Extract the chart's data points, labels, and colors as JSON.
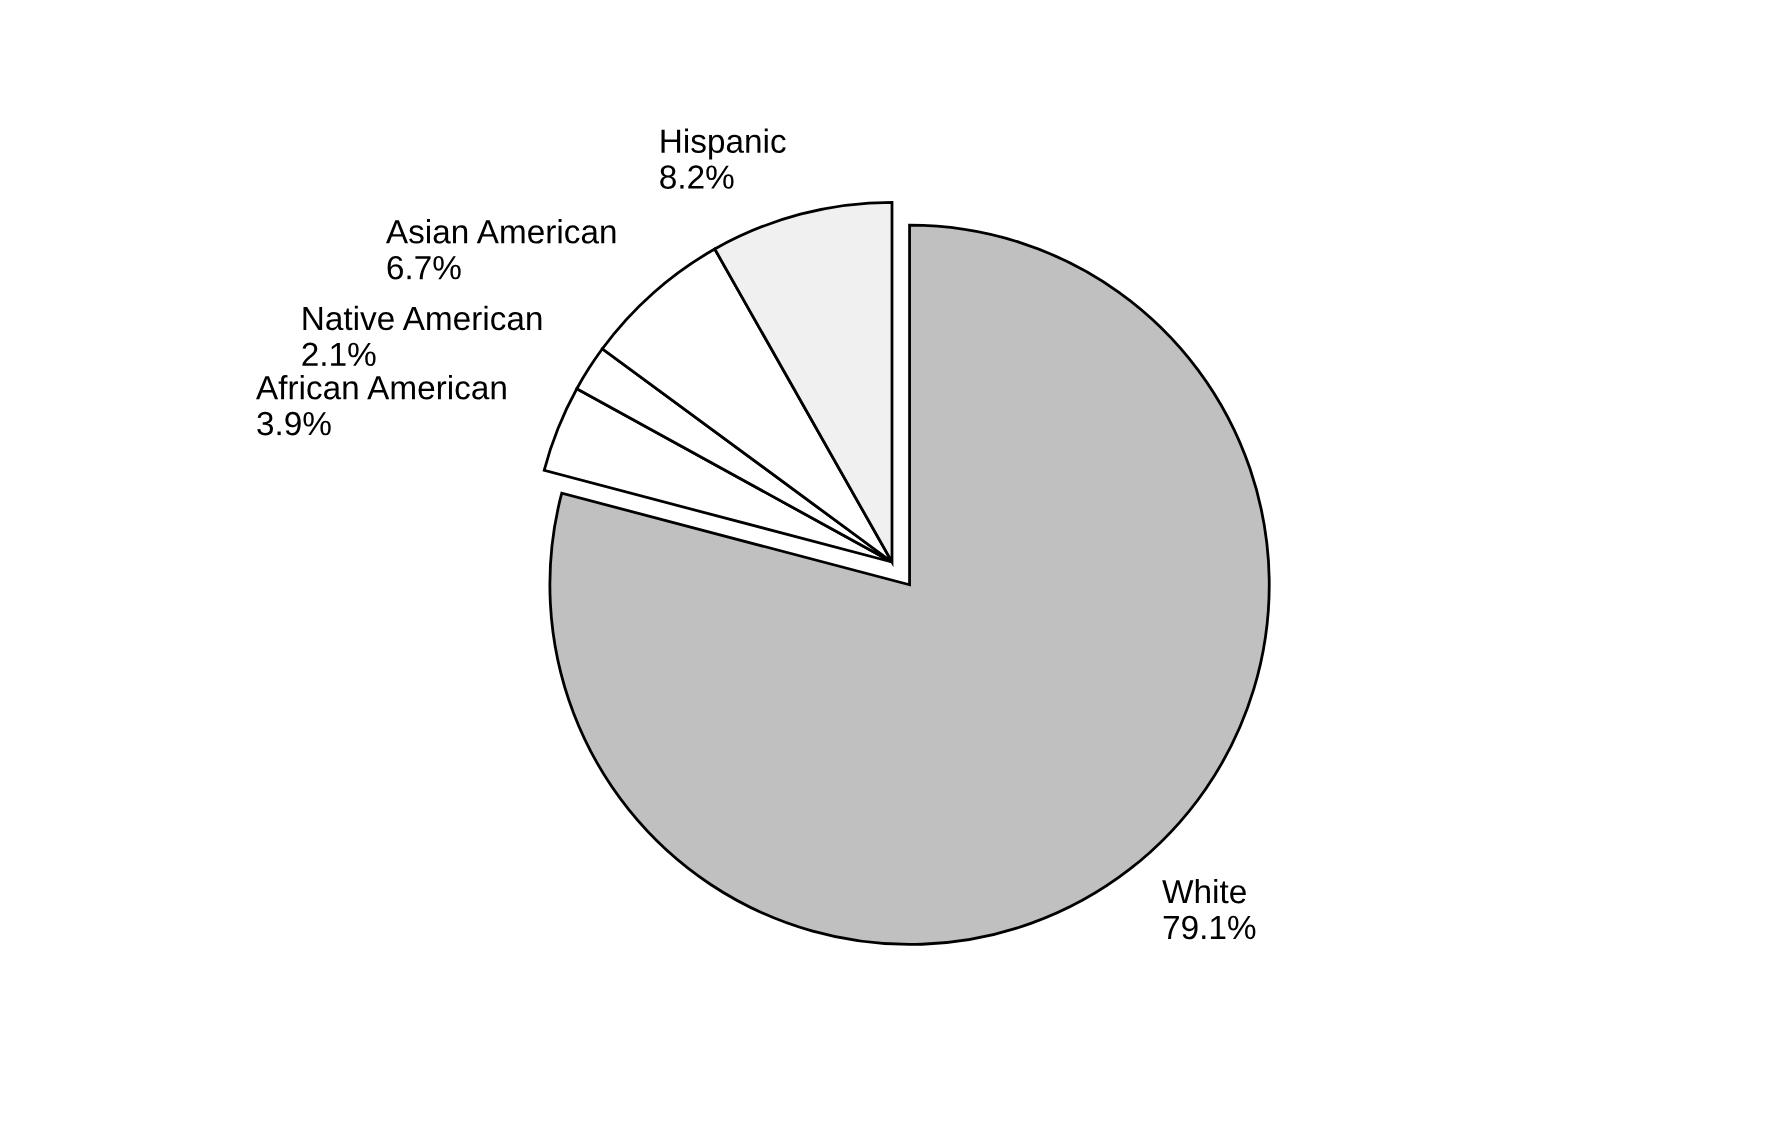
{
  "chart_data": {
    "type": "pie",
    "categories": [
      "White",
      "African American",
      "Native American",
      "Asian American",
      "Hispanic"
    ],
    "values": [
      79.1,
      3.9,
      2.1,
      6.7,
      8.2
    ],
    "value_labels": [
      "79.1%",
      "3.9%",
      "2.1%",
      "6.7%",
      "8.2%"
    ],
    "colors": [
      "#c0c0c0",
      "#ffffff",
      "#ffffff",
      "#ffffff",
      "#f0f0f0"
    ],
    "legend": false
  }
}
